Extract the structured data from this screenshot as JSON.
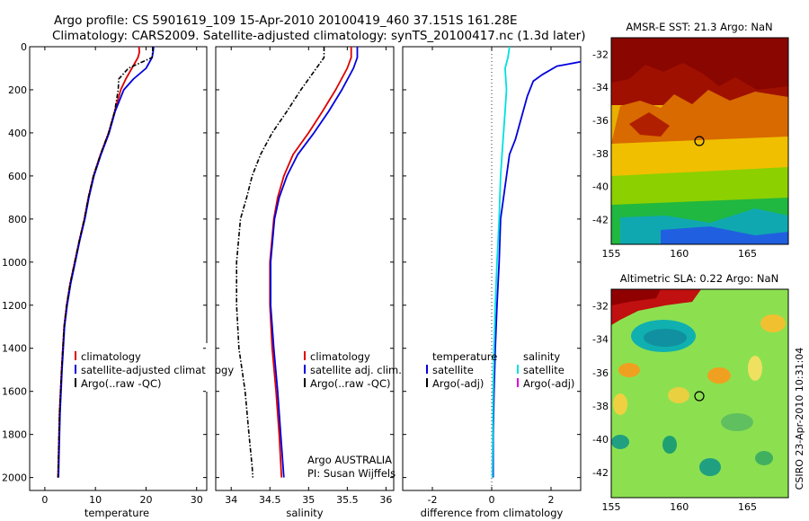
{
  "header": {
    "line1": "Argo profile: CS 5901619_109 15-Apr-2010 20100419_460 37.151S 161.28E",
    "line2": "Climatology: CARS2009. Satellite-adjusted climatology: synTS_20100417.nc (1.3d later)"
  },
  "side_label": "CSIRO 23-Apr-2010 10:31:04",
  "annotation": [
    "Argo AUSTRALIA",
    "PI: Susan Wijffels"
  ],
  "colors": {
    "climatology": "#dd0000",
    "satellite": "#0000dd",
    "argo": "#000000",
    "salinity_satellite": "#00e0e0",
    "salinity_argo_adj": "#dd00dd"
  },
  "chart_data": [
    {
      "type": "line",
      "name": "temperature-profile",
      "xlabel": "temperature",
      "ylabel": "",
      "xlim": [
        -3,
        32
      ],
      "ylim": [
        2060,
        0
      ],
      "x_ticks": [
        0,
        10,
        20,
        30
      ],
      "y_ticks": [
        0,
        200,
        400,
        600,
        800,
        1000,
        1200,
        1400,
        1600,
        1800,
        2000
      ],
      "legend": [
        "climatology",
        "satellite-adjusted climatology",
        "Argo(..raw -QC)"
      ],
      "series": [
        {
          "name": "climatology",
          "color": "#dd0000",
          "style": "solid",
          "x": [
            18.6,
            18.7,
            18.4,
            17.2,
            16.0,
            15.0,
            13.8,
            12.6,
            11.0,
            9.6,
            8.6,
            7.8,
            6.8,
            5.9,
            5.0,
            4.3,
            3.8,
            3.3,
            2.9,
            2.7,
            2.6
          ],
          "y": [
            0,
            25,
            50,
            100,
            150,
            200,
            300,
            400,
            500,
            600,
            700,
            800,
            900,
            1000,
            1100,
            1200,
            1300,
            1500,
            1700,
            1900,
            2000
          ]
        },
        {
          "name": "satellite-adjusted climatology",
          "color": "#0000dd",
          "style": "solid",
          "x": [
            21.5,
            21.4,
            21.2,
            20.0,
            17.5,
            15.6,
            13.9,
            12.7,
            11.1,
            9.7,
            8.7,
            7.9,
            6.9,
            6.0,
            5.1,
            4.4,
            3.9,
            3.4,
            3.0,
            2.8,
            2.7
          ],
          "y": [
            0,
            25,
            50,
            100,
            150,
            200,
            300,
            400,
            500,
            600,
            700,
            800,
            900,
            1000,
            1100,
            1200,
            1300,
            1500,
            1700,
            1900,
            2000
          ]
        },
        {
          "name": "Argo(..raw -QC)",
          "color": "#000000",
          "style": "dashdot",
          "x": [
            21.3,
            21.3,
            21.2,
            16.5,
            14.6,
            14.5,
            13.8,
            12.6,
            11.0,
            9.6,
            8.6,
            7.8,
            6.8,
            5.9,
            5.0,
            4.3,
            3.8,
            3.3,
            2.9,
            2.7,
            2.6
          ],
          "y": [
            0,
            25,
            50,
            100,
            150,
            200,
            300,
            400,
            500,
            600,
            700,
            800,
            900,
            1000,
            1100,
            1200,
            1300,
            1500,
            1700,
            1900,
            2000
          ]
        }
      ]
    },
    {
      "type": "line",
      "name": "salinity-profile",
      "xlabel": "salinity",
      "xlim": [
        33.8,
        36.1
      ],
      "ylim": [
        2060,
        0
      ],
      "x_ticks": [
        34,
        34.5,
        35,
        35.5,
        36
      ],
      "legend": [
        "climatology",
        "satellite adj. clim.",
        "Argo(..raw -QC)"
      ],
      "series": [
        {
          "name": "climatology",
          "color": "#dd0000",
          "style": "solid",
          "x": [
            35.55,
            35.55,
            35.5,
            35.35,
            35.18,
            35.0,
            34.8,
            34.68,
            34.6,
            34.55,
            34.5,
            34.5,
            34.53,
            34.58,
            34.62,
            34.65
          ],
          "y": [
            0,
            50,
            100,
            200,
            300,
            400,
            500,
            600,
            700,
            800,
            1000,
            1200,
            1400,
            1600,
            1800,
            2000
          ]
        },
        {
          "name": "satellite adj. clim.",
          "color": "#0000dd",
          "style": "solid",
          "x": [
            35.63,
            35.63,
            35.58,
            35.43,
            35.26,
            35.07,
            34.86,
            34.72,
            34.62,
            34.56,
            34.51,
            34.51,
            34.55,
            34.6,
            34.64,
            34.68
          ],
          "y": [
            0,
            50,
            100,
            200,
            300,
            400,
            500,
            600,
            700,
            800,
            1000,
            1200,
            1400,
            1600,
            1800,
            2000
          ]
        },
        {
          "name": "Argo(..raw -QC)",
          "color": "#000000",
          "style": "dashdot",
          "x": [
            35.2,
            35.2,
            35.1,
            34.9,
            34.72,
            34.53,
            34.38,
            34.27,
            34.2,
            34.12,
            34.07,
            34.07,
            34.1,
            34.18,
            34.23,
            34.27,
            34.28
          ],
          "y": [
            0,
            50,
            100,
            200,
            300,
            400,
            500,
            600,
            700,
            800,
            1000,
            1200,
            1400,
            1600,
            1800,
            1950,
            2000
          ]
        }
      ]
    },
    {
      "type": "line",
      "name": "difference-from-climatology",
      "xlabel": "difference from climatology",
      "xlim": [
        -3,
        3
      ],
      "ylim": [
        2060,
        0
      ],
      "x_ticks": [
        -2,
        0,
        2
      ],
      "legend": [
        "temperature",
        "satellite",
        "Argo(-adj)",
        "salinity",
        "satellite",
        "Argo(-adj)"
      ],
      "series": [
        {
          "name": "temperature satellite",
          "color": "#0000dd",
          "style": "solid",
          "x": [
            3.0,
            2.6,
            2.2,
            1.7,
            1.4,
            1.2,
            1.0,
            0.8,
            0.6,
            0.5,
            0.4,
            0.3,
            0.25,
            0.18,
            0.12,
            0.08,
            0.05,
            0.05
          ],
          "y": [
            70,
            80,
            90,
            130,
            160,
            230,
            330,
            430,
            500,
            600,
            700,
            800,
            1000,
            1200,
            1400,
            1600,
            1800,
            2000
          ]
        },
        {
          "name": "salinity satellite",
          "color": "#00e0e0",
          "style": "solid",
          "x": [
            0.6,
            0.55,
            0.45,
            0.5,
            0.45,
            0.4,
            0.35,
            0.3,
            0.25,
            0.18,
            0.12,
            0.08,
            0.05,
            0.02
          ],
          "y": [
            0,
            50,
            100,
            200,
            300,
            400,
            500,
            600,
            800,
            1000,
            1200,
            1400,
            1600,
            2000
          ]
        }
      ]
    },
    {
      "type": "heatmap",
      "name": "amsre-sst-map",
      "title": "AMSR-E SST: 21.3  Argo: NaN",
      "xlim": [
        155,
        168
      ],
      "ylim": [
        -43.5,
        -31
      ],
      "x_ticks": [
        155,
        160,
        165
      ],
      "y_ticks": [
        -32,
        -34,
        -36,
        -38,
        -40,
        -42
      ],
      "marker": {
        "lon": 161.28,
        "lat": -37.15
      }
    },
    {
      "type": "heatmap",
      "name": "altimetric-sla-map",
      "title": "Altimetric SLA: 0.22  Argo: NaN",
      "xlim": [
        155,
        168
      ],
      "ylim": [
        -43.5,
        -31
      ],
      "x_ticks": [
        155,
        160,
        165
      ],
      "y_ticks": [
        -32,
        -34,
        -36,
        -38,
        -40,
        -42
      ],
      "marker": {
        "lon": 161.28,
        "lat": -37.15
      }
    }
  ]
}
